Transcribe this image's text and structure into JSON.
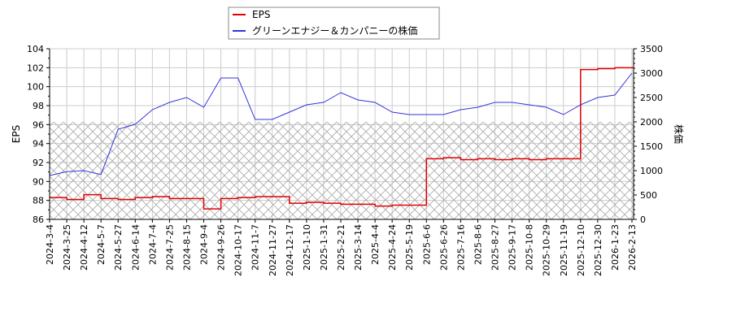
{
  "chart_data": {
    "type": "line",
    "title": "",
    "legend": {
      "position": "top-center",
      "entries": [
        {
          "label": "EPS",
          "color": "#e00000"
        },
        {
          "label": "グリーンエナジー＆カンパニーの株価",
          "color": "#3333dd"
        }
      ]
    },
    "xlabel": "",
    "ylabel_left": "EPS",
    "ylabel_right": "株価",
    "ylim_left": [
      86,
      104
    ],
    "ylim_right": [
      0,
      3500
    ],
    "yticks_left": [
      "86",
      "88",
      "90",
      "92",
      "94",
      "96",
      "98",
      "100",
      "102",
      "104"
    ],
    "yticks_right": [
      "0",
      "500",
      "1000",
      "1500",
      "2000",
      "2500",
      "3000",
      "3500"
    ],
    "grid": true,
    "hatched_region_right_axis": [
      0,
      2000
    ],
    "x_tick_labels": [
      "2024-3-4",
      "2024-3-25",
      "2024-4-12",
      "2024-5-7",
      "2024-5-27",
      "2024-6-14",
      "2024-7-4",
      "2024-7-25",
      "2024-8-15",
      "2024-9-4",
      "2024-9-26",
      "2024-10-17",
      "2024-11-7",
      "2024-11-27",
      "2024-12-17",
      "2025-1-10",
      "2025-1-31",
      "2025-2-21",
      "2025-3-14",
      "2025-4-4",
      "2025-4-24",
      "2025-5-19",
      "2025-6-6",
      "2025-6-26",
      "2025-7-16",
      "2025-8-6",
      "2025-8-27",
      "2025-9-17",
      "2025-10-8",
      "2025-10-29",
      "2025-11-19",
      "2025-12-10",
      "2025-12-30",
      "2026-1-23",
      "2026-2-13"
    ],
    "series": [
      {
        "name": "EPS",
        "axis": "left",
        "color": "#e00000",
        "x": [
          "2024-3-4",
          "2024-3-25",
          "2024-4-12",
          "2024-5-7",
          "2024-5-27",
          "2024-6-14",
          "2024-7-4",
          "2024-7-25",
          "2024-8-15",
          "2024-9-4",
          "2024-9-26",
          "2024-10-17",
          "2024-11-7",
          "2024-11-27",
          "2024-12-17",
          "2025-1-10",
          "2025-1-31",
          "2025-2-21",
          "2025-3-14",
          "2025-4-4",
          "2025-4-24",
          "2025-5-19",
          "2025-6-6",
          "2025-6-26",
          "2025-7-16",
          "2025-8-6",
          "2025-8-27",
          "2025-9-17",
          "2025-10-8",
          "2025-10-29",
          "2025-11-19",
          "2025-12-10",
          "2025-12-30",
          "2026-1-23",
          "2026-2-13"
        ],
        "values": [
          88.3,
          88.1,
          88.6,
          88.2,
          88.1,
          88.3,
          88.4,
          88.2,
          88.2,
          87.1,
          88.2,
          88.3,
          88.4,
          88.4,
          87.7,
          87.8,
          87.7,
          87.6,
          87.6,
          87.4,
          87.5,
          87.5,
          92.4,
          92.5,
          92.3,
          92.4,
          92.3,
          92.4,
          92.3,
          92.4,
          92.4,
          101.8,
          101.9,
          102.0,
          102.0
        ]
      },
      {
        "name": "グリーンエナジー＆カンパニーの株価",
        "axis": "right",
        "color": "#3333dd",
        "x": [
          "2024-3-4",
          "2024-3-25",
          "2024-4-12",
          "2024-5-7",
          "2024-5-27",
          "2024-6-14",
          "2024-7-4",
          "2024-7-25",
          "2024-8-15",
          "2024-9-4",
          "2024-9-26",
          "2024-10-17",
          "2024-11-7",
          "2024-11-27",
          "2024-12-17",
          "2025-1-10",
          "2025-1-31",
          "2025-2-21",
          "2025-3-14",
          "2025-4-4",
          "2025-4-24",
          "2025-5-19",
          "2025-6-6",
          "2025-6-26",
          "2025-7-16",
          "2025-8-6",
          "2025-8-27",
          "2025-9-17",
          "2025-10-8",
          "2025-10-29",
          "2025-11-19",
          "2025-12-10",
          "2025-12-30",
          "2026-1-23",
          "2026-2-13"
        ],
        "values": [
          900,
          980,
          1000,
          920,
          1850,
          1950,
          2250,
          2400,
          2500,
          2300,
          2900,
          2900,
          2050,
          2050,
          2200,
          2350,
          2400,
          2600,
          2450,
          2400,
          2200,
          2150,
          2150,
          2150,
          2250,
          2300,
          2400,
          2400,
          2350,
          2300,
          2150,
          2350,
          2500,
          2550,
          3000
        ]
      }
    ]
  }
}
